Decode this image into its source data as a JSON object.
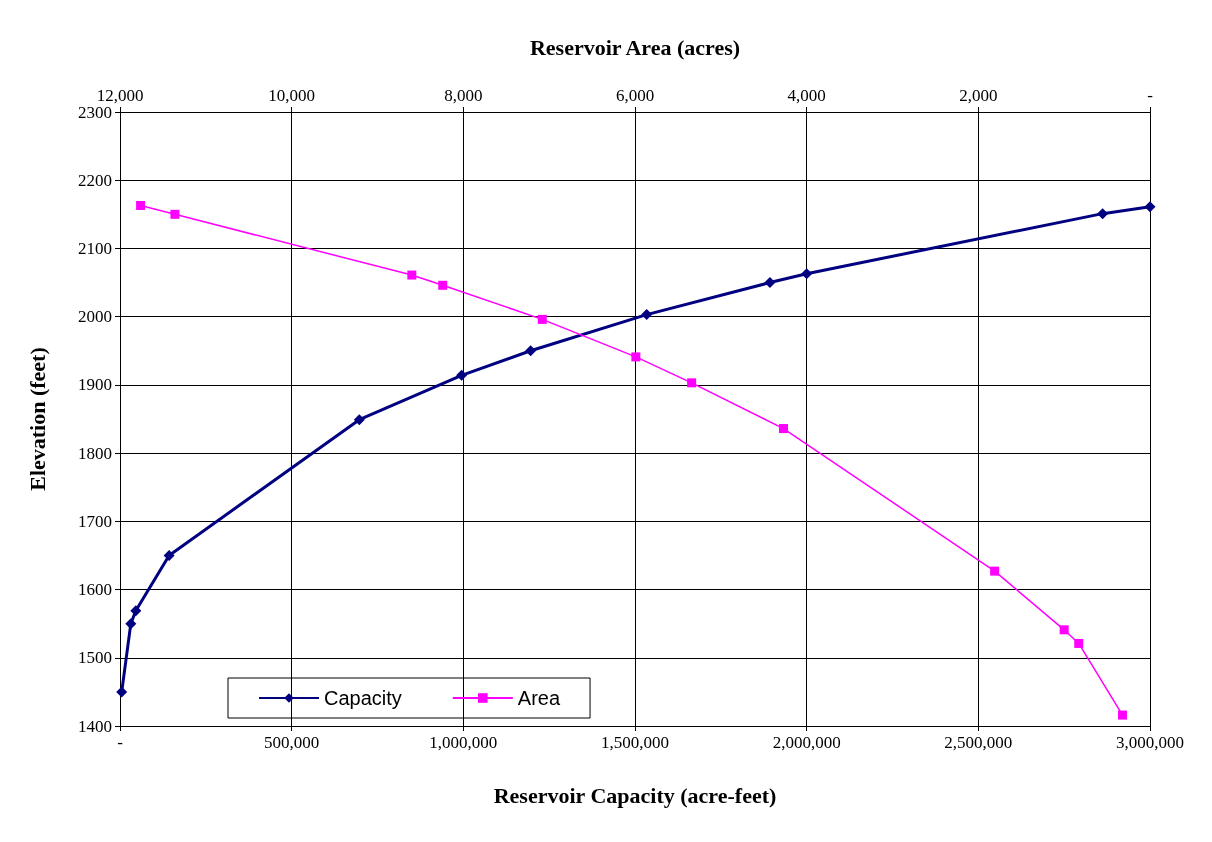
{
  "chart_data": {
    "type": "line",
    "xlabel": "Reservoir Capacity (acre-feet)",
    "x2label": "Reservoir Area (acres)",
    "ylabel": "Elevation (feet)",
    "xlim": [
      0,
      3000000
    ],
    "xticks": [
      {
        "value": 0,
        "label": "-"
      },
      {
        "value": 500000,
        "label": "500,000"
      },
      {
        "value": 1000000,
        "label": "1,000,000"
      },
      {
        "value": 1500000,
        "label": "1,500,000"
      },
      {
        "value": 2000000,
        "label": "2,000,000"
      },
      {
        "value": 2500000,
        "label": "2,500,000"
      },
      {
        "value": 3000000,
        "label": "3,000,000"
      }
    ],
    "x2lim": [
      12000,
      0
    ],
    "x2ticks": [
      {
        "value": 12000,
        "label": "12,000"
      },
      {
        "value": 10000,
        "label": "10,000"
      },
      {
        "value": 8000,
        "label": "8,000"
      },
      {
        "value": 6000,
        "label": "6,000"
      },
      {
        "value": 4000,
        "label": "4,000"
      },
      {
        "value": 2000,
        "label": "2,000"
      },
      {
        "value": 0,
        "label": "-"
      }
    ],
    "ylim": [
      1400,
      2300
    ],
    "yticks": [
      1400,
      1500,
      1600,
      1700,
      1800,
      1900,
      2000,
      2100,
      2200,
      2300
    ],
    "grid": true,
    "legend": "bottom left",
    "line_style": "solid",
    "series": [
      {
        "name": "Capacity",
        "color": "#000080",
        "marker": "diamond",
        "x": [
          5000,
          31500,
          46000,
          143000,
          697000,
          995000,
          1196000,
          1534000,
          1893000,
          2000000,
          2862000,
          3000000
        ],
        "values": [
          1450,
          1550,
          1569,
          1650,
          1849,
          1914,
          1950,
          2003,
          2050,
          2063,
          2151,
          2161
        ]
      },
      {
        "name": "Area",
        "color": "#ff00ff",
        "marker": "square",
        "axis": "x2",
        "x": [
          11760,
          11360,
          8600,
          8240,
          7080,
          5990,
          5340,
          4270,
          1810,
          1000,
          830,
          320
        ],
        "values": [
          2163,
          2150,
          2061,
          2046,
          1996,
          1941,
          1903,
          1836,
          1627,
          1541,
          1521,
          1416
        ]
      }
    ]
  }
}
